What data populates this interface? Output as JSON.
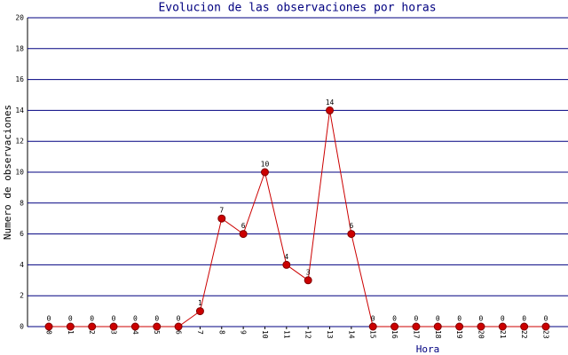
{
  "chart_data": {
    "type": "line",
    "title": "Evolucion de las observaciones por horas",
    "x_label": "Hora",
    "y_label": "Numero de observaciones",
    "categories": [
      "0",
      "1",
      "2",
      "3",
      "4",
      "5",
      "6",
      "7",
      "8",
      "9",
      "10",
      "11",
      "12",
      "13",
      "14",
      "15",
      "16",
      "17",
      "18",
      "19",
      "20",
      "21",
      "22",
      "23"
    ],
    "series": [
      {
        "name": "observaciones",
        "color": "#cc0000",
        "values": [
          0,
          0,
          0,
          0,
          0,
          0,
          0,
          1,
          7,
          6,
          10,
          4,
          3,
          14,
          6,
          0,
          0,
          0,
          0,
          0,
          0,
          0,
          0,
          0
        ]
      }
    ],
    "ylim": [
      0,
      20
    ],
    "yticks": [
      0,
      2,
      4,
      6,
      8,
      10,
      12,
      14,
      16,
      18,
      20
    ],
    "grid": true
  }
}
